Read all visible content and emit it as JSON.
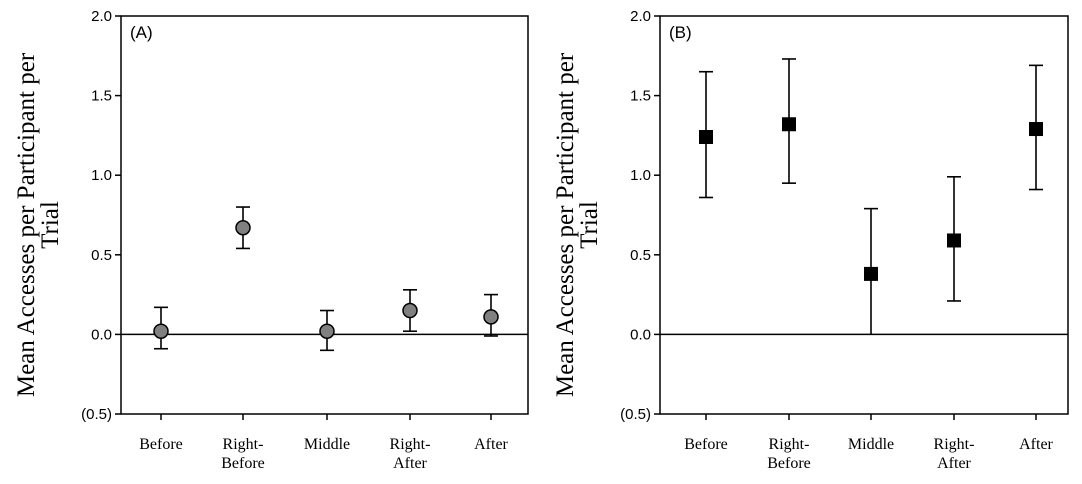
{
  "chart_data": [
    {
      "type": "scatter",
      "panel_label": "(A)",
      "ylabel": [
        "Mean Accesses per Participant per",
        "Trial"
      ],
      "categories": [
        [
          "Before"
        ],
        [
          "Right-",
          "Before"
        ],
        [
          "Middle"
        ],
        [
          "Right-",
          "After"
        ],
        [
          "After"
        ]
      ],
      "ylim": [
        -0.5,
        2.0
      ],
      "yticks": [
        2.0,
        1.5,
        1.0,
        0.5,
        0.0,
        -0.5
      ],
      "ytick_labels": [
        "2.0",
        "1.5",
        "1.0",
        "0.5",
        "0.0",
        "(0.5)"
      ],
      "reference_line": 0.0,
      "marker": "circle",
      "marker_color": "#808080",
      "series": [
        {
          "values": [
            0.02,
            0.67,
            0.02,
            0.15,
            0.11
          ],
          "err_low": [
            -0.09,
            0.54,
            -0.1,
            0.02,
            -0.01
          ],
          "err_high": [
            0.17,
            0.8,
            0.15,
            0.28,
            0.25
          ]
        }
      ]
    },
    {
      "type": "scatter",
      "panel_label": "(B)",
      "ylabel": [
        "Mean Accesses per Participant per",
        "Trial"
      ],
      "categories": [
        [
          "Before"
        ],
        [
          "Right-",
          "Before"
        ],
        [
          "Middle"
        ],
        [
          "Right-",
          "After"
        ],
        [
          "After"
        ]
      ],
      "ylim": [
        -0.5,
        2.0
      ],
      "yticks": [
        2.0,
        1.5,
        1.0,
        0.5,
        0.0,
        -0.5
      ],
      "ytick_labels": [
        "2.0",
        "1.5",
        "1.0",
        "0.5",
        "0.0",
        "(0.5)"
      ],
      "reference_line": 0.0,
      "marker": "square",
      "marker_color": "#000000",
      "series": [
        {
          "values": [
            1.24,
            1.32,
            0.38,
            0.59,
            1.29
          ],
          "err_low": [
            0.86,
            0.95,
            0.0,
            0.21,
            0.91
          ],
          "err_high": [
            1.65,
            1.73,
            0.79,
            0.99,
            1.69
          ]
        }
      ]
    }
  ]
}
